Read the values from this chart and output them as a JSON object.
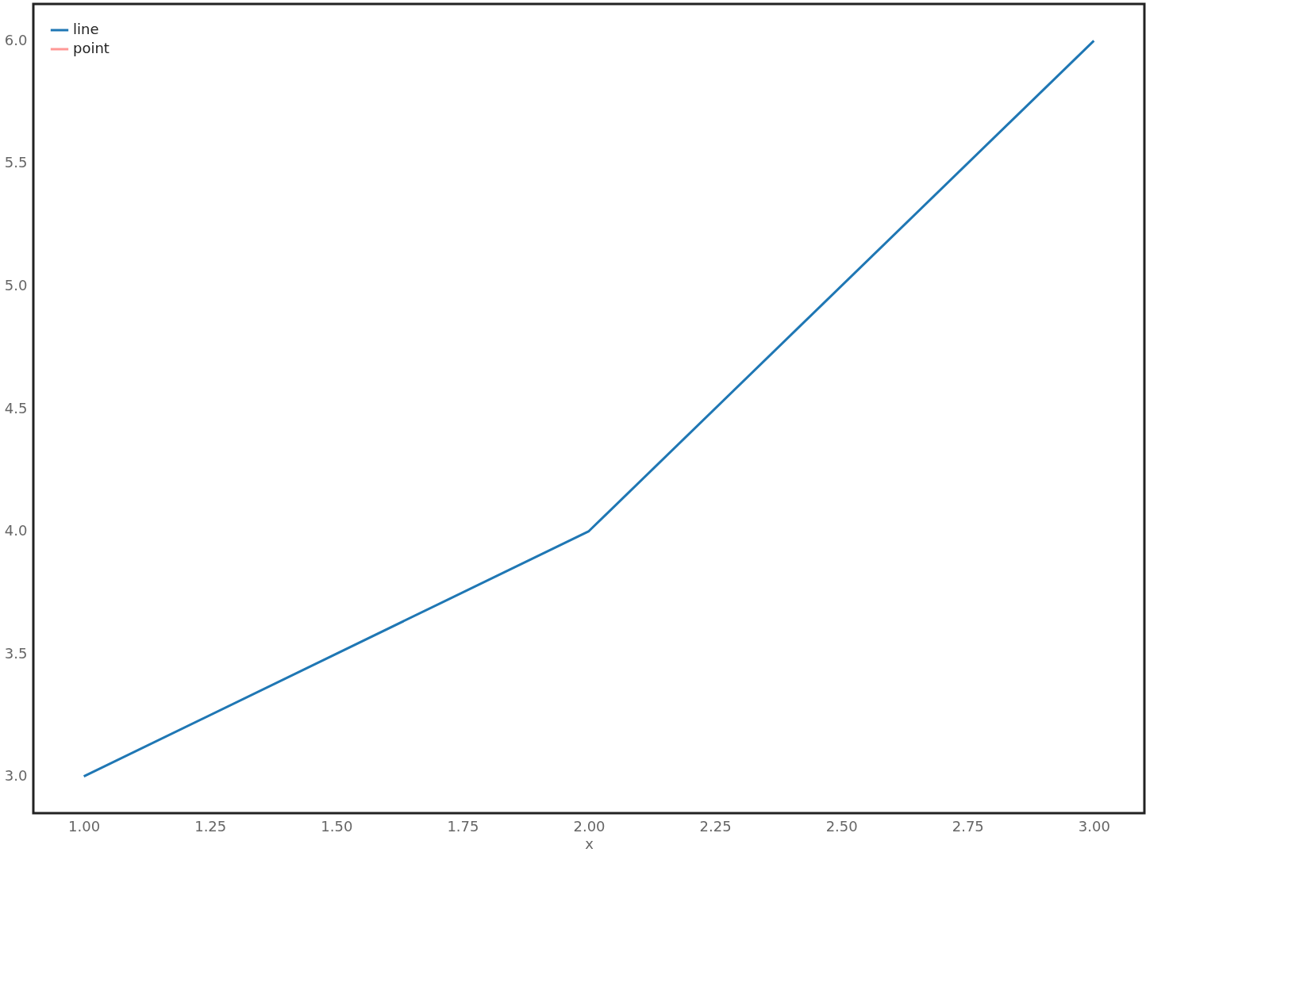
{
  "chart_data": {
    "type": "line",
    "xlabel": "x",
    "x": [
      1,
      2,
      3
    ],
    "series": [
      {
        "name": "line",
        "color": "#1f77b4",
        "values": [
          3,
          4,
          6
        ]
      },
      {
        "name": "point",
        "color": "#ff9896",
        "values": [
          null,
          null,
          null
        ]
      }
    ],
    "xlim": [
      0.9,
      3.1
    ],
    "ylim": [
      2.85,
      6.15
    ],
    "xticks": [
      {
        "value": 1,
        "label": "1.00"
      },
      {
        "value": 1.25,
        "label": "1.25"
      },
      {
        "value": 1.5,
        "label": "1.50"
      },
      {
        "value": 1.75,
        "label": "1.75"
      },
      {
        "value": 2,
        "label": "2.00"
      },
      {
        "value": 2.25,
        "label": "2.25"
      },
      {
        "value": 2.5,
        "label": "2.50"
      },
      {
        "value": 2.75,
        "label": "2.75"
      },
      {
        "value": 3,
        "label": "3.00"
      }
    ],
    "yticks": [
      {
        "value": 3,
        "label": "3.0"
      },
      {
        "value": 3.5,
        "label": "3.5"
      },
      {
        "value": 4,
        "label": "4.0"
      },
      {
        "value": 4.5,
        "label": "4.5"
      },
      {
        "value": 5,
        "label": "5.0"
      },
      {
        "value": 5.5,
        "label": "5.5"
      },
      {
        "value": 6,
        "label": "6.0"
      }
    ],
    "grid": false,
    "legend": "top left",
    "line_style": "solid",
    "marker": "none"
  }
}
